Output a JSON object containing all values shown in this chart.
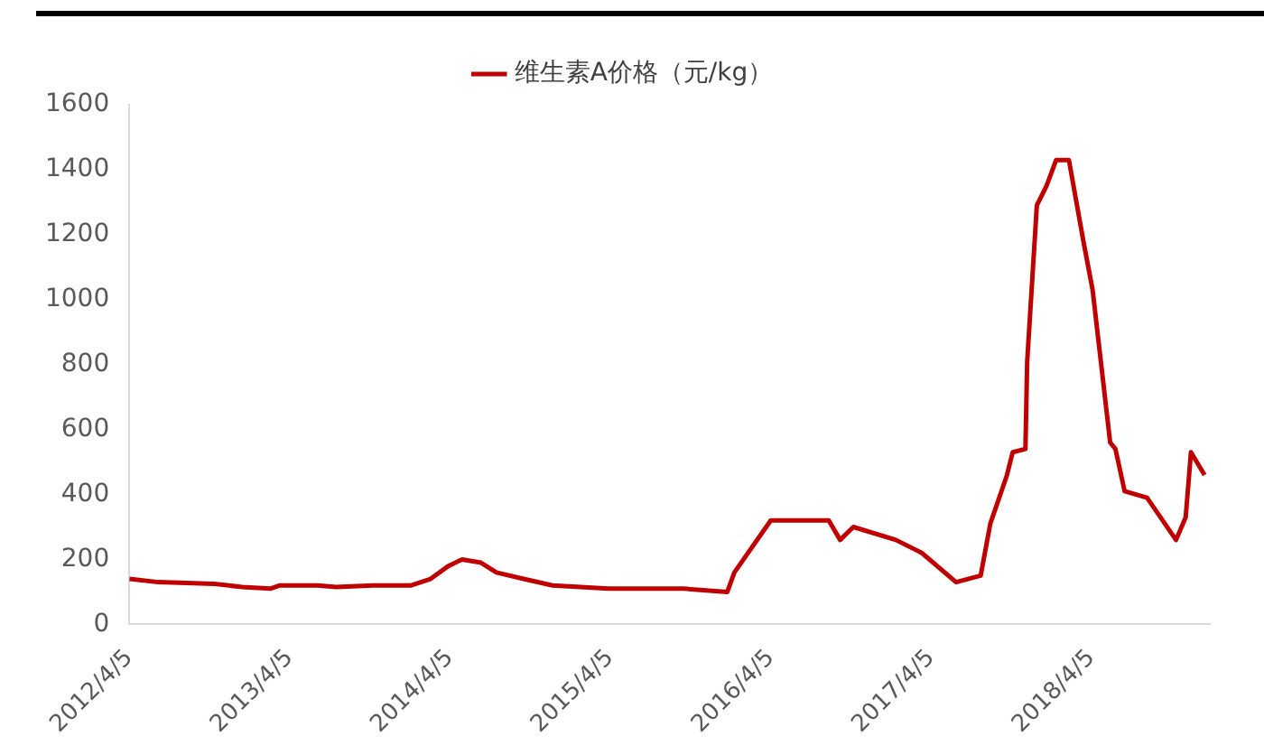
{
  "chart_data": {
    "type": "line",
    "legend": "top",
    "marker": "none",
    "line_style": "solid",
    "grid": false,
    "xlim": [
      "2012-04-05",
      "2018-12-31"
    ],
    "xticks": [
      {
        "value": "2012-04-05",
        "label": "2012/4/5"
      },
      {
        "value": "2013-04-05",
        "label": "2013/4/5"
      },
      {
        "value": "2014-04-05",
        "label": "2014/4/5"
      },
      {
        "value": "2015-04-05",
        "label": "2015/4/5"
      },
      {
        "value": "2016-04-05",
        "label": "2016/4/5"
      },
      {
        "value": "2017-04-05",
        "label": "2017/4/5"
      },
      {
        "value": "2018-04-05",
        "label": "2018/4/5"
      }
    ],
    "ylim": [
      0,
      1600
    ],
    "yticks": [
      0,
      200,
      400,
      600,
      800,
      1000,
      1200,
      1400,
      1600
    ],
    "x": [
      "2012-04-05",
      "2012-06-10",
      "2012-10-15",
      "2012-12-18",
      "2013-02-20",
      "2013-03-14",
      "2013-06-08",
      "2013-07-20",
      "2013-10-12",
      "2014-01-07",
      "2014-02-20",
      "2014-04-02",
      "2014-05-03",
      "2014-06-15",
      "2014-07-20",
      "2014-09-20",
      "2014-11-25",
      "2015-04-01",
      "2015-09-20",
      "2015-12-28",
      "2016-01-13",
      "2016-04-05",
      "2016-08-15",
      "2016-09-10",
      "2016-10-10",
      "2017-01-15",
      "2017-03-15",
      "2017-06-01",
      "2017-07-27",
      "2017-08-18",
      "2017-09-25",
      "2017-10-08",
      "2017-11-06",
      "2017-11-10",
      "2017-12-02",
      "2017-12-24",
      "2018-01-15",
      "2018-02-13",
      "2018-03-18",
      "2018-04-08",
      "2018-05-18",
      "2018-05-30",
      "2018-06-20",
      "2018-08-10",
      "2018-10-15",
      "2018-11-06",
      "2018-11-18",
      "2018-12-19"
    ],
    "series": [
      {
        "name": "维生素A价格（元/kg）",
        "color": "#c00000",
        "values": [
          140,
          130,
          125,
          115,
          110,
          120,
          120,
          115,
          120,
          120,
          140,
          180,
          200,
          190,
          160,
          140,
          120,
          110,
          110,
          100,
          160,
          320,
          320,
          260,
          300,
          260,
          220,
          130,
          150,
          310,
          460,
          530,
          540,
          810,
          1290,
          1350,
          1430,
          1430,
          1180,
          1030,
          560,
          540,
          410,
          390,
          260,
          330,
          530,
          460
        ]
      }
    ]
  }
}
